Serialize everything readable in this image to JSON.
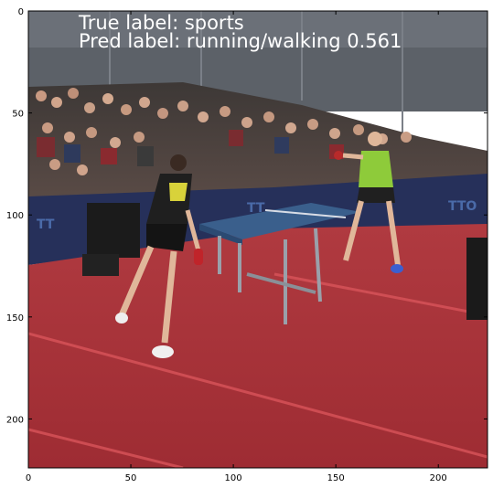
{
  "figure": {
    "overlay_lines": [
      "True label: sports",
      "Pred label: running/walking 0.561"
    ],
    "image_extent": {
      "x_min": 0,
      "x_max": 224,
      "y_min": 0,
      "y_max": 224
    },
    "x_ticks": [
      "0",
      "50",
      "100",
      "150",
      "200"
    ],
    "y_ticks": [
      "0",
      "50",
      "100",
      "150",
      "200"
    ],
    "x_tick_values": [
      0,
      50,
      100,
      150,
      200
    ],
    "y_tick_values": [
      0,
      50,
      100,
      150,
      200
    ],
    "colors": {
      "floor": "#a8323a",
      "floor_line": "#d9545a",
      "wall": "#26305a",
      "crowd": "#4a3f3b",
      "table": "#3a5f8c",
      "shirt_right": "#8ecb3a",
      "shirt_left": "#2a2a2a",
      "skin": "#e0b79a"
    }
  }
}
